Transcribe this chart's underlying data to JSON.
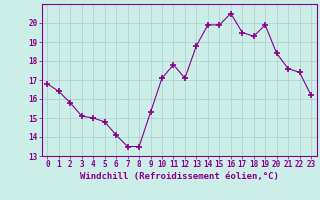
{
  "x": [
    0,
    1,
    2,
    3,
    4,
    5,
    6,
    7,
    8,
    9,
    10,
    11,
    12,
    13,
    14,
    15,
    16,
    17,
    18,
    19,
    20,
    21,
    22,
    23
  ],
  "y": [
    16.8,
    16.4,
    15.8,
    15.1,
    15.0,
    14.8,
    14.1,
    13.5,
    13.5,
    15.3,
    17.1,
    17.8,
    17.1,
    18.8,
    19.9,
    19.9,
    20.5,
    19.5,
    19.3,
    19.9,
    18.4,
    17.6,
    17.4,
    16.2
  ],
  "line_color": "#880088",
  "marker": "+",
  "marker_size": 4,
  "marker_lw": 1.2,
  "bg_color": "#cceee8",
  "grid_color": "#aacccc",
  "xlabel": "Windchill (Refroidissement éolien,°C)",
  "xlim": [
    -0.5,
    23.5
  ],
  "ylim": [
    13,
    21
  ],
  "yticks": [
    13,
    14,
    15,
    16,
    17,
    18,
    19,
    20
  ],
  "xticks": [
    0,
    1,
    2,
    3,
    4,
    5,
    6,
    7,
    8,
    9,
    10,
    11,
    12,
    13,
    14,
    15,
    16,
    17,
    18,
    19,
    20,
    21,
    22,
    23
  ],
  "tick_color": "#880088",
  "tick_fontsize": 5.5,
  "xlabel_fontsize": 6.5,
  "spine_color": "#880088",
  "line_width": 0.8
}
